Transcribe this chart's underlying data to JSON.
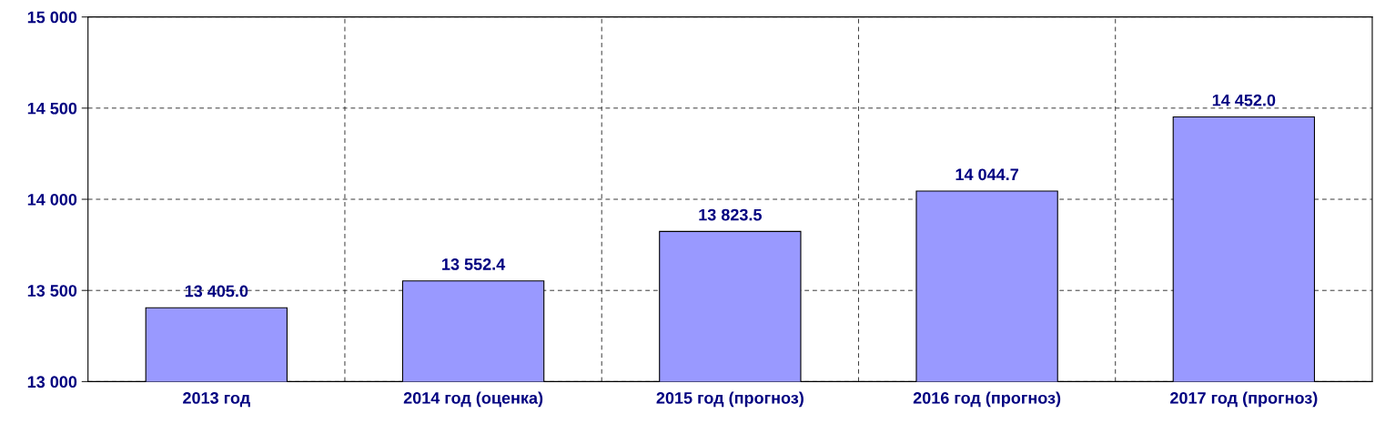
{
  "chart_data": {
    "type": "bar",
    "categories": [
      "2013 год",
      "2014 год (оценка)",
      "2015 год (прогноз)",
      "2016 год (прогноз)",
      "2017 год (прогноз)"
    ],
    "values": [
      13405.0,
      13552.4,
      13823.5,
      14044.7,
      14452.0
    ],
    "value_labels": [
      "13 405.0",
      "13 552.4",
      "13 823.5",
      "14 044.7",
      "14 452.0"
    ],
    "color": "#9999ff",
    "ylim": [
      13000,
      15000
    ],
    "yticks": [
      {
        "value": 13000,
        "label": "13 000"
      },
      {
        "value": 13500,
        "label": "13 500"
      },
      {
        "value": 14000,
        "label": "14 000"
      },
      {
        "value": 14500,
        "label": "14 500"
      },
      {
        "value": 15000,
        "label": "15 000"
      }
    ],
    "grid": true
  }
}
